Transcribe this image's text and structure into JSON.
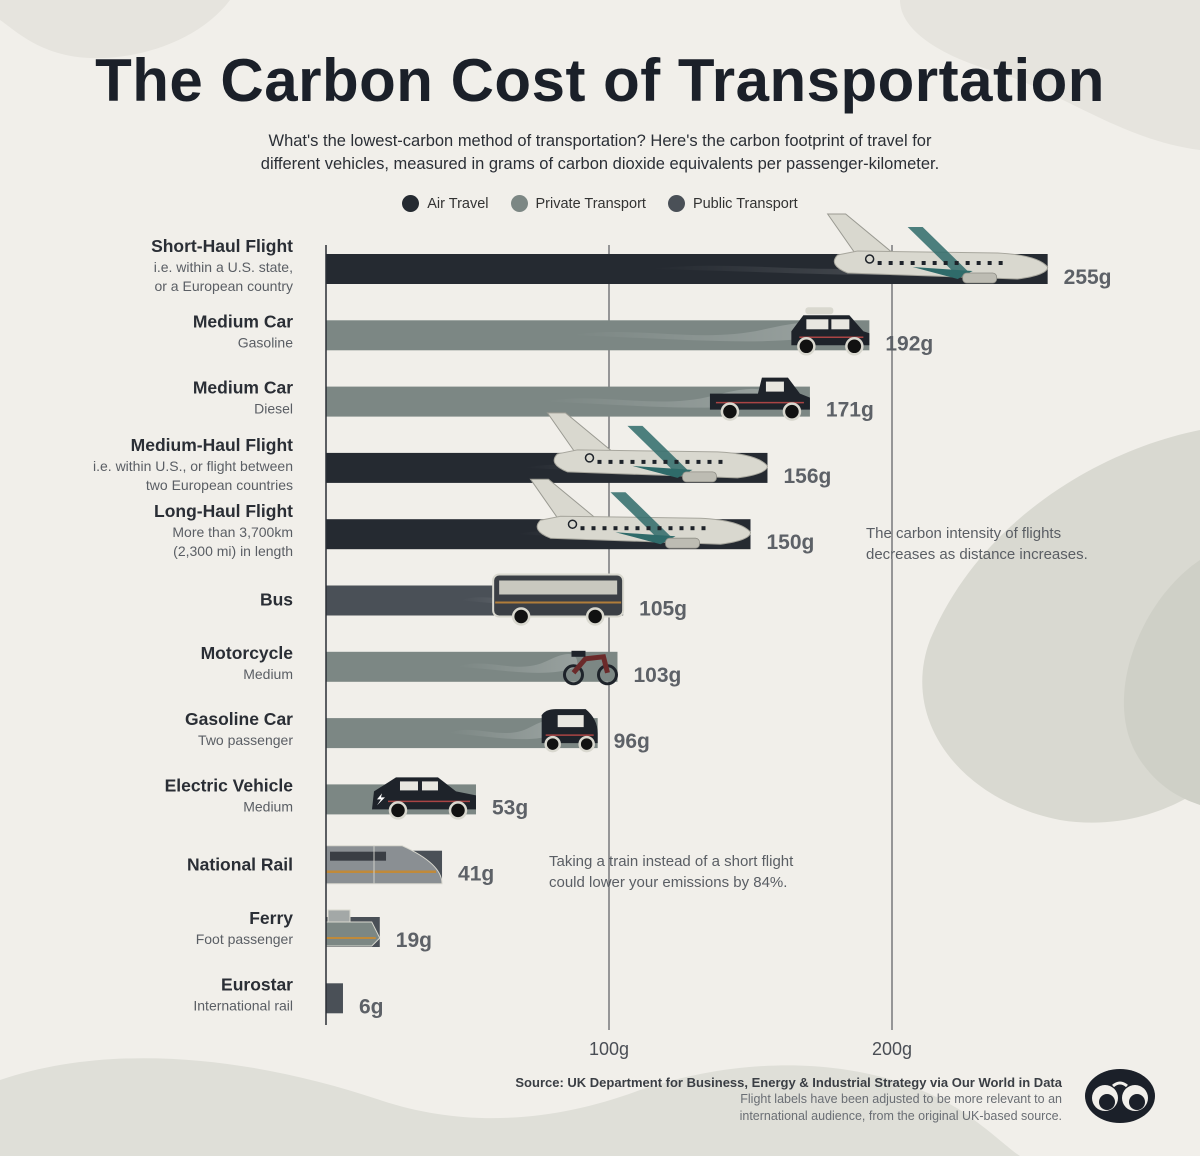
{
  "header": {
    "title": "The Carbon Cost of Transportation",
    "subtitle_line1": "What's the lowest-carbon method of transportation? Here's the carbon footprint of travel for",
    "subtitle_line2": "different vehicles, measured in grams of carbon dioxide equivalents per passenger-kilometer."
  },
  "legend": [
    {
      "label": "Air Travel",
      "color": "#252a31"
    },
    {
      "label": "Private Transport",
      "color": "#7c8784"
    },
    {
      "label": "Public Transport",
      "color": "#4a5057"
    }
  ],
  "colors": {
    "air": "#252a31",
    "private": "#7c8784",
    "public": "#4a5057",
    "background": "#f1efea"
  },
  "chart_data": {
    "type": "bar",
    "orientation": "horizontal",
    "title": "The Carbon Cost of Transportation",
    "xlim": [
      0,
      255
    ],
    "ticks": [
      {
        "value": 100,
        "label": "100g"
      },
      {
        "value": 200,
        "label": "200g"
      }
    ],
    "items": [
      {
        "name": "Short-Haul Flight",
        "sub": [
          "i.e. within a U.S. state,",
          "or a European country"
        ],
        "value": 255,
        "label": "255g",
        "category": "air",
        "icon": "airplane-icon"
      },
      {
        "name": "Medium Car",
        "sub": [
          "Gasoline"
        ],
        "value": 192,
        "label": "192g",
        "category": "private",
        "icon": "suv-icon"
      },
      {
        "name": "Medium Car",
        "sub": [
          "Diesel"
        ],
        "value": 171,
        "label": "171g",
        "category": "private",
        "icon": "pickup-truck-icon"
      },
      {
        "name": "Medium-Haul Flight",
        "sub": [
          "i.e. within U.S., or flight between",
          "two European countries"
        ],
        "value": 156,
        "label": "156g",
        "category": "air",
        "icon": "airplane-icon"
      },
      {
        "name": "Long-Haul Flight",
        "sub": [
          "More than 3,700km",
          "(2,300 mi) in length"
        ],
        "value": 150,
        "label": "150g",
        "category": "air",
        "icon": "airplane-icon"
      },
      {
        "name": "Bus",
        "sub": [],
        "value": 105,
        "label": "105g",
        "category": "public",
        "icon": "bus-icon"
      },
      {
        "name": "Motorcycle",
        "sub": [
          "Medium"
        ],
        "value": 103,
        "label": "103g",
        "category": "private",
        "icon": "motorcycle-icon"
      },
      {
        "name": "Gasoline Car",
        "sub": [
          "Two passenger"
        ],
        "value": 96,
        "label": "96g",
        "category": "private",
        "icon": "small-car-icon"
      },
      {
        "name": "Electric Vehicle",
        "sub": [
          "Medium"
        ],
        "value": 53,
        "label": "53g",
        "category": "private",
        "icon": "electric-car-icon"
      },
      {
        "name": "National Rail",
        "sub": [],
        "value": 41,
        "label": "41g",
        "category": "public",
        "icon": "train-icon"
      },
      {
        "name": "Ferry",
        "sub": [
          "Foot passenger"
        ],
        "value": 19,
        "label": "19g",
        "category": "public",
        "icon": "ferry-icon"
      },
      {
        "name": "Eurostar",
        "sub": [
          "International rail"
        ],
        "value": 6,
        "label": "6g",
        "category": "public",
        "icon": ""
      }
    ],
    "annotations": [
      {
        "lines": [
          "The carbon intensity of flights",
          "decreases as distance increases."
        ]
      },
      {
        "lines": [
          "Taking a train instead of a short flight",
          "could lower your emissions by 84%."
        ]
      }
    ]
  },
  "footer": {
    "source": "Source: UK Department for Business, Energy & Industrial Strategy via Our World in Data",
    "note_line1": "Flight labels have been adjusted to be more relevant to an",
    "note_line2": "international audience, from the original UK-based source."
  },
  "logo": {
    "name": "visual-capitalist-logo"
  }
}
